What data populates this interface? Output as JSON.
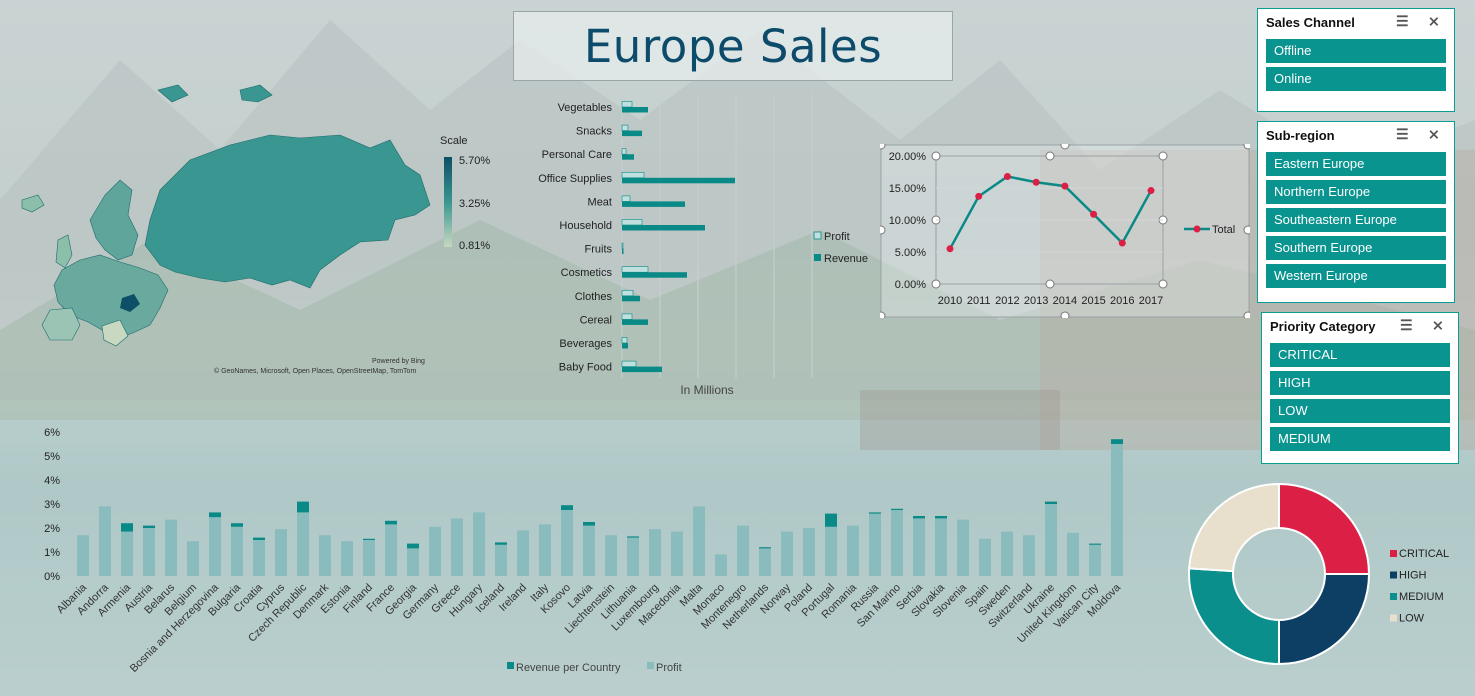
{
  "dashboard": {
    "title": "Europe Sales"
  },
  "map": {
    "scale_label": "Scale",
    "scale_max": "5.70%",
    "scale_mid": "3.25%",
    "scale_min": "0.81%",
    "credit_line1": "Powered by Bing",
    "credit_line2": "© GeoNames, Microsoft, Open Places, OpenStreetMap, TomTom",
    "colors": {
      "dark": "#0d4f66",
      "mid": "#3a9690",
      "light": "#c9d8c0"
    }
  },
  "slicers": {
    "sales_channel": {
      "title": "Sales Channel",
      "items": [
        "Offline",
        "Online"
      ]
    },
    "sub_region": {
      "title": "Sub-region",
      "items": [
        "Eastern Europe",
        "Northern Europe",
        "Southeastern Europe",
        "Southern Europe",
        "Western Europe"
      ]
    },
    "priority": {
      "title": "Priority Category",
      "items": [
        "CRITICAL",
        "HIGH",
        "LOW",
        "MEDIUM"
      ]
    }
  },
  "chart_data": [
    {
      "type": "bar",
      "orientation": "horizontal",
      "categories": [
        "Vegetables",
        "Snacks",
        "Personal Care",
        "Office Supplies",
        "Meat",
        "Household",
        "Fruits",
        "Cosmetics",
        "Clothes",
        "Cereal",
        "Beverages",
        "Baby Food"
      ],
      "series": [
        {
          "name": "Profit",
          "values": [
            1.0,
            0.6,
            0.4,
            2.2,
            0.8,
            2.0,
            0.1,
            2.6,
            1.1,
            1.0,
            0.5,
            1.4
          ],
          "color": "#bfe0de"
        },
        {
          "name": "Revenue",
          "values": [
            2.6,
            2.0,
            1.2,
            11.3,
            6.3,
            8.3,
            0.15,
            6.5,
            1.8,
            2.6,
            0.6,
            4.0
          ],
          "color": "#0a8a86"
        }
      ],
      "xlabel": "In Millions",
      "legend": "right",
      "grid": true
    },
    {
      "type": "line",
      "x": [
        "2010",
        "2011",
        "2012",
        "2013",
        "2014",
        "2015",
        "2016",
        "2017"
      ],
      "series": [
        {
          "name": "Total",
          "values": [
            5.5,
            13.7,
            16.8,
            15.9,
            15.3,
            10.9,
            6.4,
            14.6
          ],
          "color": "#0a8a86",
          "marker_color": "#dc1f45"
        }
      ],
      "ylim": [
        0,
        20
      ],
      "yticks": [
        "0.00%",
        "5.00%",
        "10.00%",
        "15.00%",
        "20.00%"
      ],
      "legend": "right",
      "grid": true
    },
    {
      "type": "bar",
      "orientation": "vertical",
      "stacked": true,
      "categories": [
        "Albania",
        "Andorra",
        "Armenia",
        "Austria",
        "Belarus",
        "Belgium",
        "Bosnia and Herzegovina",
        "Bulgaria",
        "Croatia",
        "Cyprus",
        "Czech Republic",
        "Denmark",
        "Estonia",
        "Finland",
        "France",
        "Georgia",
        "Germany",
        "Greece",
        "Hungary",
        "Iceland",
        "Ireland",
        "Italy",
        "Kosovo",
        "Latvia",
        "Liechtenstein",
        "Lithuania",
        "Luxembourg",
        "Macedonia",
        "Malta",
        "Monaco",
        "Montenegro",
        "Netherlands",
        "Norway",
        "Poland",
        "Portugal",
        "Romania",
        "Russia",
        "San Marino",
        "Serbia",
        "Slovakia",
        "Slovenia",
        "Spain",
        "Sweden",
        "Switzerland",
        "Ukraine",
        "United Kingdom",
        "Vatican City",
        "Moldova"
      ],
      "series": [
        {
          "name": "Profit",
          "values": [
            1.7,
            2.9,
            1.85,
            2.0,
            2.35,
            1.45,
            2.45,
            2.05,
            1.5,
            1.95,
            2.65,
            1.7,
            1.45,
            1.5,
            2.15,
            1.15,
            2.05,
            2.4,
            2.65,
            1.3,
            1.9,
            2.15,
            2.75,
            2.1,
            1.7,
            1.6,
            1.95,
            1.85,
            2.9,
            0.9,
            2.1,
            1.15,
            1.85,
            2.0,
            2.05,
            2.1,
            2.6,
            2.75,
            2.4,
            2.4,
            2.35,
            1.55,
            1.85,
            1.7,
            3.0,
            1.8,
            1.3,
            5.5
          ],
          "color": "#8bbcbd"
        },
        {
          "name": "Revenue per Country",
          "values": [
            0,
            0,
            0.35,
            0.1,
            0,
            0,
            0.2,
            0.15,
            0.1,
            0,
            0.45,
            0,
            0,
            0.05,
            0.15,
            0.2,
            0,
            0,
            0,
            0.1,
            0,
            0,
            0.2,
            0.15,
            0,
            0.05,
            0,
            0,
            0,
            0,
            0,
            0.05,
            0,
            0,
            0.55,
            0,
            0.05,
            0.05,
            0.1,
            0.1,
            0,
            0,
            0,
            0,
            0.1,
            0,
            0.05,
            0.2
          ],
          "color": "#0a8a86"
        }
      ],
      "ylim": [
        0,
        6
      ],
      "yticks": [
        "0%",
        "1%",
        "2%",
        "3%",
        "4%",
        "5%",
        "6%"
      ],
      "legend": "bottom",
      "grid": false
    },
    {
      "type": "pie",
      "donut": true,
      "labels": [
        "CRITICAL",
        "HIGH",
        "MEDIUM",
        "LOW"
      ],
      "values": [
        25,
        25,
        26,
        24
      ],
      "colors": [
        "#dc1f45",
        "#0c3f63",
        "#0a8f8c",
        "#e8dfcc"
      ],
      "legend": "right"
    }
  ]
}
